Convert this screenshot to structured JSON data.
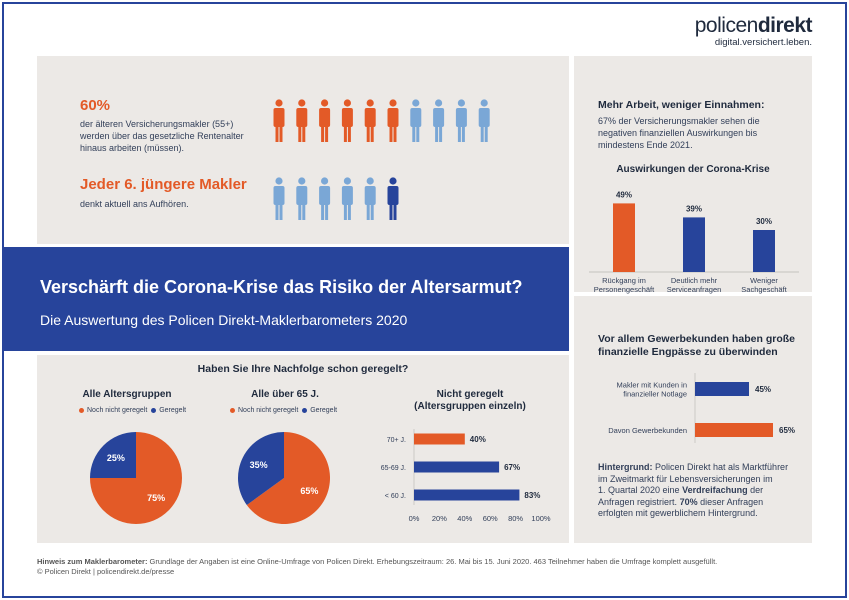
{
  "logo": {
    "brand_light": "policen",
    "brand_bold": "direkt",
    "tagline": "digital.versichert.leben."
  },
  "colors": {
    "orange": "#e35a27",
    "light_blue": "#7aa7d6",
    "dark_blue": "#27449b",
    "panel": "#ece9e6"
  },
  "stat1": {
    "headline": "60%",
    "text": [
      "der älteren Versicherungsmakler (55+)",
      "werden über das gesetzliche Rentenalter",
      "hinaus arbeiten (müssen)."
    ],
    "icons_total": 10,
    "icons_highlight": 6
  },
  "stat2": {
    "headline": "Jeder 6. jüngere Makler",
    "text": "denkt aktuell ans Aufhören.",
    "icons_total": 6,
    "icons_highlight": 1
  },
  "banner": {
    "title": "Verschärft die Corona-Krise das Risiko der Altersarmut?",
    "subtitle": "Die Auswertung des Policen Direkt-Maklerbarometers 2020"
  },
  "right_top": {
    "heading": "Mehr Arbeit, weniger Einnahmen:",
    "text": [
      "67% der Versicherungsmakler sehen die",
      "negativen finanziellen Auswirkungen bis",
      "mindestens Ende 2021."
    ]
  },
  "right_mid": {
    "heading": [
      "Vor allem Gewerbekunden haben große",
      "finanzielle Engpässe zu überwinden"
    ]
  },
  "right_bottom": {
    "label": "Hintergrund:",
    "lines": [
      "Policen Direkt hat als Marktführer",
      "im Zweitmarkt für Lebensversicherungen im",
      "1. Quartal 2020 eine",
      "Verdreifachung",
      "der",
      "Anfragen registriert.",
      "70%",
      "dieser Anfragen",
      "erfolgten mit gewerblichem Hintergrund."
    ]
  },
  "nachfolge": {
    "title": "Haben Sie Ihre Nachfolge schon geregelt?",
    "legend_a": "Noch nicht geregelt",
    "legend_b": "Geregelt"
  },
  "chart_data": [
    {
      "type": "bar",
      "title": "Auswirkungen der Corona-Krise",
      "categories": [
        [
          "Rückgang im",
          "Personengeschäft"
        ],
        [
          "Deutlich mehr",
          "Serviceanfragen"
        ],
        [
          "Weniger",
          "Sachgeschäft"
        ]
      ],
      "values": [
        49,
        39,
        30
      ],
      "value_labels": [
        "49%",
        "39%",
        "30%"
      ],
      "colors": [
        "#e35a27",
        "#27449b",
        "#27449b"
      ]
    },
    {
      "type": "bar",
      "orientation": "horizontal",
      "categories": [
        [
          "Makler mit Kunden in",
          "finanzieller Notlage"
        ],
        [
          "Davon Gewerbekunden"
        ]
      ],
      "values": [
        45,
        65
      ],
      "value_labels": [
        "45%",
        "65%"
      ],
      "colors": [
        "#27449b",
        "#e35a27"
      ]
    },
    {
      "type": "pie",
      "title": "Alle Altersgruppen",
      "labels": [
        "Noch nicht geregelt",
        "Geregelt"
      ],
      "values": [
        75,
        25
      ],
      "value_labels": [
        "75%",
        "25%"
      ],
      "colors": [
        "#e35a27",
        "#27449b"
      ]
    },
    {
      "type": "pie",
      "title": "Alle über 65 J.",
      "labels": [
        "Noch nicht geregelt",
        "Geregelt"
      ],
      "values": [
        65,
        35
      ],
      "value_labels": [
        "65%",
        "35%"
      ],
      "colors": [
        "#e35a27",
        "#27449b"
      ]
    },
    {
      "type": "bar",
      "orientation": "horizontal",
      "title": [
        "Nicht geregelt",
        "(Altersgruppen einzeln)"
      ],
      "categories": [
        "70+ J.",
        "65-69 J.",
        "< 60 J."
      ],
      "values": [
        40,
        67,
        83
      ],
      "value_labels": [
        "40%",
        "67%",
        "83%"
      ],
      "colors": [
        "#e35a27",
        "#27449b",
        "#27449b"
      ],
      "xticks": [
        "0%",
        "20%",
        "40%",
        "60%",
        "80%",
        "100%"
      ],
      "xlim": [
        0,
        100
      ]
    }
  ],
  "footer": {
    "label": "Hinweis zum Maklerbarometer:",
    "text": "Grundlage der Angaben ist eine Online-Umfrage von Policen Direkt. Erhebungszeitraum: 26. Mai bis 15. Juni 2020. 463 Teilnehmer haben die Umfrage komplett ausgefüllt.",
    "copyright": "© Policen Direkt | policendirekt.de/presse"
  }
}
